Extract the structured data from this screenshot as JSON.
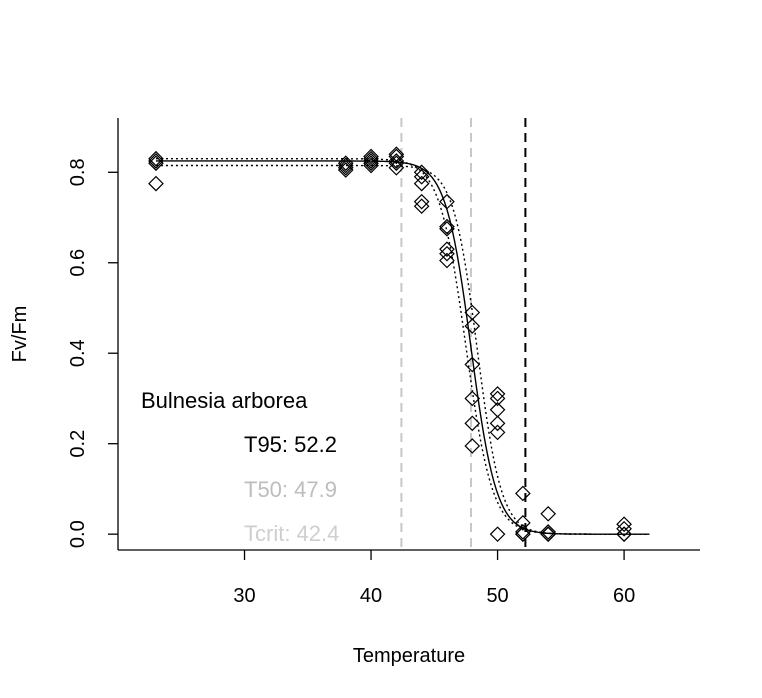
{
  "chart_data": {
    "type": "scatter",
    "title": "",
    "xlabel": "Temperature",
    "ylabel": "Fv/Fm",
    "xlim": [
      20,
      66
    ],
    "ylim": [
      -0.035,
      0.92
    ],
    "x_ticks": [
      30,
      40,
      50,
      60
    ],
    "y_ticks": [
      0.0,
      0.2,
      0.4,
      0.6,
      0.8
    ],
    "x_tick_labels": [
      "30",
      "40",
      "50",
      "60"
    ],
    "y_tick_labels": [
      "0.0",
      "0.2",
      "0.4",
      "0.6",
      "0.8"
    ],
    "points": [
      {
        "x": 23,
        "y": 0.83
      },
      {
        "x": 23,
        "y": 0.825
      },
      {
        "x": 23,
        "y": 0.82
      },
      {
        "x": 23,
        "y": 0.775
      },
      {
        "x": 38,
        "y": 0.82
      },
      {
        "x": 38,
        "y": 0.815
      },
      {
        "x": 38,
        "y": 0.81
      },
      {
        "x": 38,
        "y": 0.805
      },
      {
        "x": 40,
        "y": 0.835
      },
      {
        "x": 40,
        "y": 0.83
      },
      {
        "x": 40,
        "y": 0.825
      },
      {
        "x": 40,
        "y": 0.82
      },
      {
        "x": 40,
        "y": 0.815
      },
      {
        "x": 42,
        "y": 0.84
      },
      {
        "x": 42,
        "y": 0.835
      },
      {
        "x": 42,
        "y": 0.825
      },
      {
        "x": 42,
        "y": 0.82
      },
      {
        "x": 42,
        "y": 0.81
      },
      {
        "x": 44,
        "y": 0.8
      },
      {
        "x": 44,
        "y": 0.79
      },
      {
        "x": 44,
        "y": 0.775
      },
      {
        "x": 44,
        "y": 0.735
      },
      {
        "x": 44,
        "y": 0.725
      },
      {
        "x": 46,
        "y": 0.735
      },
      {
        "x": 46,
        "y": 0.68
      },
      {
        "x": 46,
        "y": 0.675
      },
      {
        "x": 46,
        "y": 0.63
      },
      {
        "x": 46,
        "y": 0.62
      },
      {
        "x": 46,
        "y": 0.605
      },
      {
        "x": 48,
        "y": 0.49
      },
      {
        "x": 48,
        "y": 0.46
      },
      {
        "x": 48,
        "y": 0.375
      },
      {
        "x": 48,
        "y": 0.3
      },
      {
        "x": 48,
        "y": 0.245
      },
      {
        "x": 48,
        "y": 0.195
      },
      {
        "x": 50,
        "y": 0.31
      },
      {
        "x": 50,
        "y": 0.3
      },
      {
        "x": 50,
        "y": 0.275
      },
      {
        "x": 50,
        "y": 0.245
      },
      {
        "x": 50,
        "y": 0.225
      },
      {
        "x": 50,
        "y": 0.0
      },
      {
        "x": 52,
        "y": 0.09
      },
      {
        "x": 52,
        "y": 0.025
      },
      {
        "x": 52,
        "y": 0.005
      },
      {
        "x": 52,
        "y": 0.0
      },
      {
        "x": 52,
        "y": 0.0
      },
      {
        "x": 54,
        "y": 0.045
      },
      {
        "x": 54,
        "y": 0.005
      },
      {
        "x": 54,
        "y": 0.0
      },
      {
        "x": 54,
        "y": 0.0
      },
      {
        "x": 54,
        "y": 0.0
      },
      {
        "x": 60,
        "y": 0.022
      },
      {
        "x": 60,
        "y": 0.012
      },
      {
        "x": 60,
        "y": 0.0
      },
      {
        "x": 60,
        "y": 0.0
      }
    ],
    "fit_curves": [
      {
        "style": "solid",
        "color": "#000000",
        "top": 0.825,
        "x50": 47.9,
        "scale": 1.0
      },
      {
        "style": "dotted",
        "color": "#000000",
        "top": 0.83,
        "x50": 47.5,
        "scale": 1.05
      },
      {
        "style": "dotted",
        "color": "#000000",
        "top": 0.815,
        "x50": 48.4,
        "scale": 0.95
      }
    ],
    "fit_x_range": [
      23,
      62
    ],
    "vertical_lines": [
      {
        "x": 42.4,
        "color": "#c8c8c8",
        "style": "dashed"
      },
      {
        "x": 47.9,
        "color": "#c8c8c8",
        "style": "dashed"
      },
      {
        "x": 52.2,
        "color": "#000000",
        "style": "dashed"
      }
    ],
    "annotations": {
      "species": "Bulnesia arborea",
      "t95": "T95: 52.2",
      "t50": "T50: 47.9",
      "tcrit": "Tcrit: 42.4"
    },
    "colors": {
      "t95": "#000000",
      "t50": "#bdbdbd",
      "tcrit": "#cfcfcf"
    },
    "marker": "diamond",
    "grid": false
  }
}
